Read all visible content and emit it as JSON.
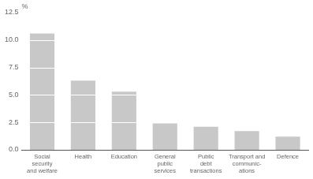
{
  "chart_data": {
    "type": "bar",
    "categories": [
      "Social\nsecurity\nand welfare",
      "Health",
      "Education",
      "General\npublic\nservices",
      "Public\ndebt\ntransactions",
      "Transport and\ncommunic-\nations",
      "Defence"
    ],
    "values": [
      10.6,
      6.3,
      5.3,
      2.4,
      2.1,
      1.7,
      1.2
    ],
    "color": "#c8c8c8",
    "ylabel": "%",
    "ylim": [
      0,
      12.5
    ],
    "yticks": [
      {
        "value": 0.0,
        "label": "0.0"
      },
      2.5,
      {
        "value": 5.0,
        "label": "5.0"
      },
      7.5,
      {
        "value": 10.0,
        "label": "10.0"
      },
      12.5
    ],
    "grid": false
  }
}
